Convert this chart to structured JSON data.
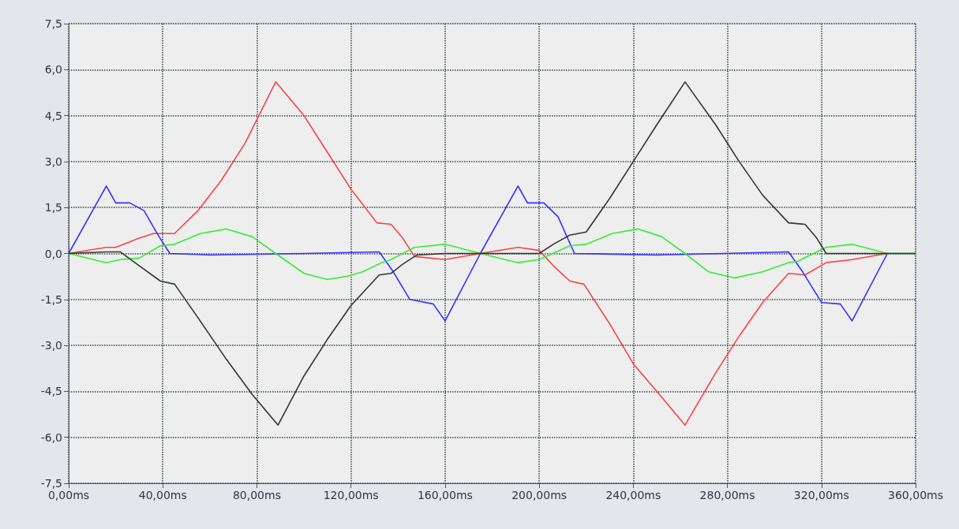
{
  "chart_data": {
    "type": "line",
    "xlim": [
      0,
      360
    ],
    "ylim": [
      -7.5,
      7.5
    ],
    "xticks": [
      {
        "value": 0,
        "label": "0,00ms"
      },
      {
        "value": 40,
        "label": "40,00ms"
      },
      {
        "value": 80,
        "label": "80,00ms"
      },
      {
        "value": 120,
        "label": "120,00ms"
      },
      {
        "value": 160,
        "label": "160,00ms"
      },
      {
        "value": 200,
        "label": "200,00ms"
      },
      {
        "value": 240,
        "label": "240,00ms"
      },
      {
        "value": 280,
        "label": "280,00ms"
      },
      {
        "value": 320,
        "label": "320,00ms"
      },
      {
        "value": 360,
        "label": "360,00ms"
      }
    ],
    "yticks": [
      {
        "value": -7.5,
        "label": "-7,5"
      },
      {
        "value": -6,
        "label": "-6,0"
      },
      {
        "value": -4.5,
        "label": "-4,5"
      },
      {
        "value": -3,
        "label": "-3,0"
      },
      {
        "value": -1.5,
        "label": "-1,5"
      },
      {
        "value": 0,
        "label": "0,0"
      },
      {
        "value": 1.5,
        "label": "1,5"
      },
      {
        "value": 3,
        "label": "3,0"
      },
      {
        "value": 4.5,
        "label": "4,5"
      },
      {
        "value": 6,
        "label": "6,0"
      },
      {
        "value": 7.5,
        "label": "7,5"
      }
    ],
    "grid": true,
    "marker": "none",
    "line_style": "solid",
    "series": [
      {
        "color": "#ff4040",
        "x": [
          0,
          16,
          20,
          30,
          36,
          45,
          55,
          65,
          75,
          88,
          100,
          110,
          120,
          131,
          137,
          142,
          147,
          160,
          175,
          191,
          200,
          206,
          213,
          219,
          230,
          240,
          250,
          262,
          275,
          285,
          295,
          306,
          313,
          322,
          333,
          348
        ],
        "values": [
          0,
          0.2,
          0.2,
          0.5,
          0.65,
          0.65,
          1.4,
          2.4,
          3.6,
          5.6,
          4.5,
          3.3,
          2.1,
          1.0,
          0.95,
          0.5,
          -0.1,
          -0.2,
          0,
          0.2,
          0.1,
          -0.4,
          -0.9,
          -1.0,
          -2.3,
          -3.6,
          -4.5,
          -5.6,
          -3.9,
          -2.7,
          -1.6,
          -0.65,
          -0.7,
          -0.3,
          -0.2,
          0
        ]
      },
      {
        "color": "#3333ff",
        "x": [
          0,
          16,
          20,
          26,
          32,
          38,
          43,
          60,
          100,
          132,
          138,
          145,
          155,
          160,
          175,
          191,
          195,
          202,
          208,
          215,
          250,
          306,
          312,
          320,
          328,
          333,
          348
        ],
        "values": [
          0,
          2.2,
          1.65,
          1.65,
          1.4,
          0.6,
          0,
          -0.05,
          0,
          0.05,
          -0.6,
          -1.5,
          -1.65,
          -2.2,
          0,
          2.2,
          1.65,
          1.65,
          1.2,
          0,
          -0.05,
          0.05,
          -0.6,
          -1.6,
          -1.65,
          -2.2,
          0
        ]
      },
      {
        "color": "#33ee33",
        "x": [
          0,
          16,
          22,
          30,
          39,
          45,
          56,
          67,
          78,
          88,
          100,
          110,
          118,
          125,
          133,
          137,
          147,
          160,
          175,
          191,
          200,
          213,
          220,
          231,
          242,
          252,
          262,
          272,
          283,
          295,
          306,
          310,
          322,
          333,
          348,
          360
        ],
        "values": [
          0,
          -0.3,
          -0.2,
          -0.15,
          0.25,
          0.3,
          0.65,
          0.8,
          0.55,
          0,
          -0.65,
          -0.85,
          -0.75,
          -0.6,
          -0.3,
          -0.2,
          0.2,
          0.3,
          0,
          -0.3,
          -0.2,
          0.25,
          0.3,
          0.65,
          0.8,
          0.55,
          0,
          -0.6,
          -0.8,
          -0.6,
          -0.3,
          -0.25,
          0.2,
          0.3,
          0,
          0
        ]
      },
      {
        "color": "#333333",
        "x": [
          0,
          16,
          22,
          30,
          39,
          45,
          55,
          67,
          78,
          89,
          100,
          110,
          120,
          132,
          137,
          142,
          148,
          160,
          200,
          206,
          213,
          220,
          230,
          240,
          250,
          262,
          275,
          285,
          295,
          306,
          313,
          318,
          322,
          360
        ],
        "values": [
          0,
          0.05,
          0.05,
          -0.4,
          -0.9,
          -1.0,
          -2.1,
          -3.45,
          -4.6,
          -5.6,
          -4.0,
          -2.8,
          -1.7,
          -0.7,
          -0.65,
          -0.35,
          -0.05,
          0,
          0,
          0.3,
          0.6,
          0.7,
          1.8,
          3.0,
          4.2,
          5.6,
          4.2,
          3.0,
          1.9,
          1.0,
          0.95,
          0.5,
          0,
          0
        ]
      }
    ]
  }
}
